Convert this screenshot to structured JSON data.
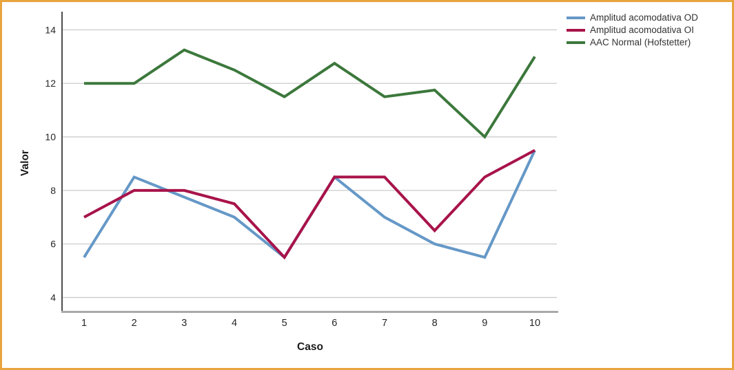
{
  "frame": {
    "border_color": "#E8A43E",
    "background_color": "#FFFFFF"
  },
  "chart_data": {
    "type": "line",
    "title": "",
    "xlabel": "Caso",
    "ylabel": "Valor",
    "categories": [
      "1",
      "2",
      "3",
      "4",
      "5",
      "6",
      "7",
      "8",
      "9",
      "10"
    ],
    "yticks": [
      4,
      6,
      8,
      10,
      12,
      14
    ],
    "ylim": [
      3.5,
      14.55
    ],
    "grid": true,
    "legend_position": "top-right",
    "series": [
      {
        "name": "Amplitud acomodativa OD",
        "color": "#6598C7",
        "values": [
          5.5,
          8.5,
          7.75,
          7.0,
          5.5,
          8.5,
          7.0,
          6.0,
          5.5,
          9.5
        ]
      },
      {
        "name": "Amplitud acomodativa OI",
        "color": "#A8134A",
        "values": [
          7.0,
          8.0,
          8.0,
          7.5,
          5.5,
          8.5,
          8.5,
          6.5,
          8.5,
          9.5
        ]
      },
      {
        "name": "AAC Normal (Hofstetter)",
        "color": "#3C783C",
        "values": [
          12.0,
          12.0,
          13.25,
          12.5,
          11.5,
          12.75,
          11.5,
          11.75,
          10.0,
          13.0
        ]
      }
    ],
    "axis_style": {
      "gridline_color": "#CBCBCB",
      "y_axis_color": "#4D4D4D",
      "x_axis_color": "#A9A9A9",
      "tick_label_color": "#262626"
    }
  }
}
